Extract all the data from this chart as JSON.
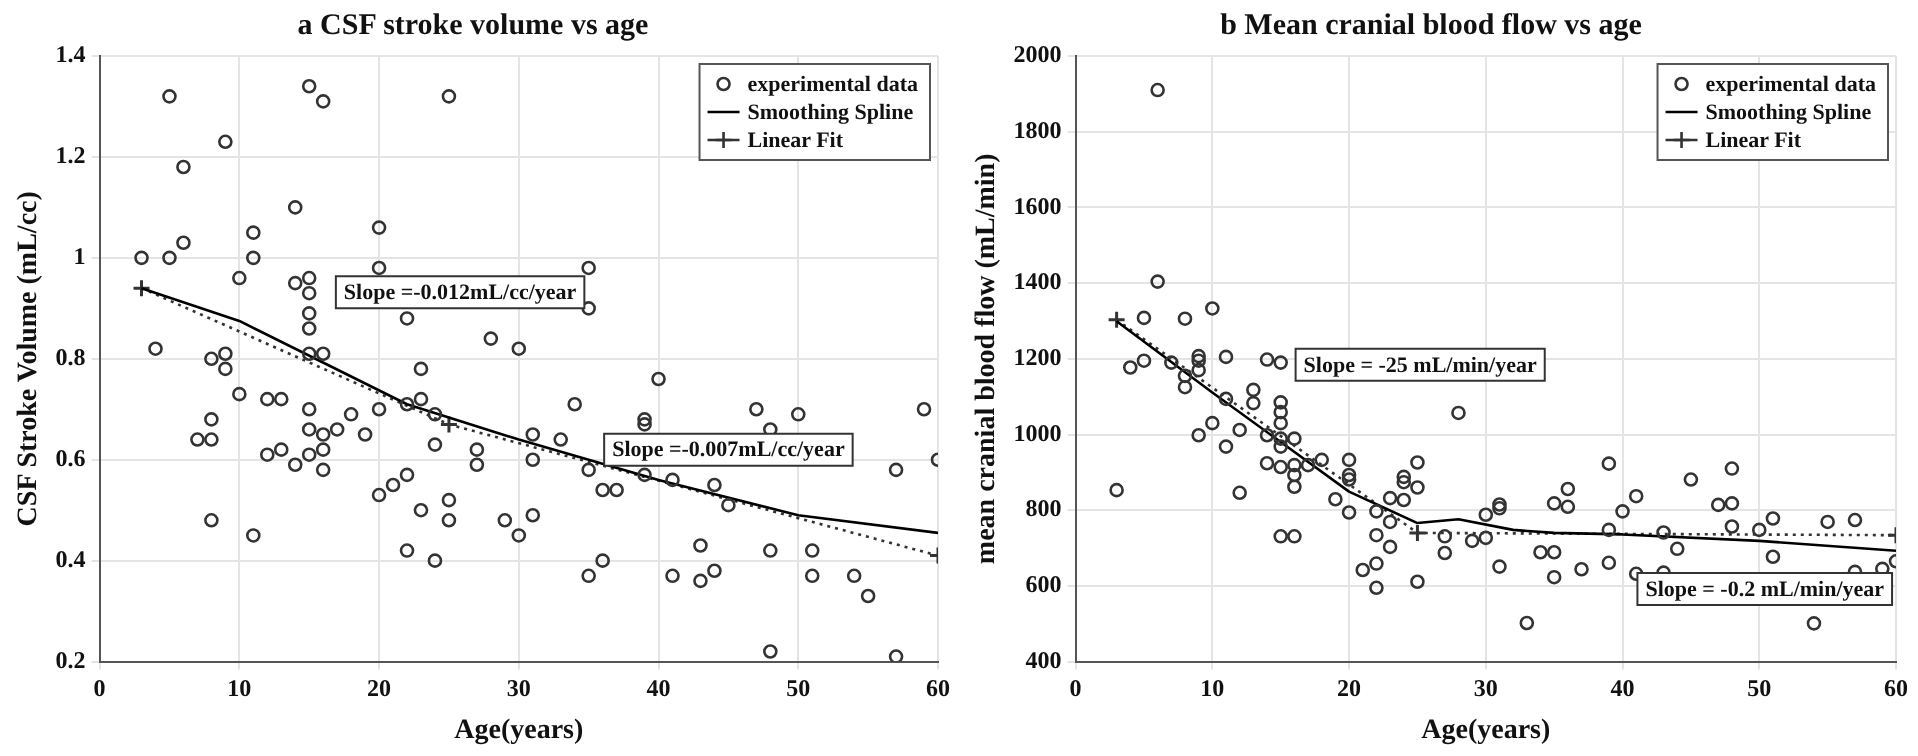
{
  "chart_data": [
    {
      "type": "scatter",
      "title": "a CSF stroke volume vs age",
      "xlabel": "Age(years)",
      "ylabel": "CSF Stroke Volume (mL/cc)",
      "xlim": [
        0,
        60
      ],
      "xticks": [
        0,
        10,
        20,
        30,
        40,
        50,
        60
      ],
      "ylim": [
        0.2,
        1.4
      ],
      "yticks": [
        0.2,
        0.4,
        0.6,
        0.8,
        1,
        1.2,
        1.4
      ],
      "grid": true,
      "legend": "top right",
      "annotations": [
        "Slope =-0.012mL/cc/year",
        "Slope =-0.007mL/cc/year"
      ],
      "series": [
        {
          "name": "experimental data",
          "type": "scatter",
          "marker": "circle",
          "color": "#333333",
          "x": [
            3,
            5,
            5,
            4,
            6,
            6,
            9,
            7,
            8,
            8,
            8,
            8,
            9,
            9,
            10,
            10,
            11,
            11,
            11,
            12,
            13,
            12,
            13,
            14,
            14,
            14,
            15,
            15,
            15,
            15,
            15,
            15,
            15,
            15,
            15,
            16,
            16,
            16,
            16,
            16,
            17,
            18,
            19,
            20,
            20,
            20,
            20,
            21,
            22,
            22,
            22,
            22,
            23,
            23,
            23,
            24,
            24,
            24,
            25,
            25,
            25,
            27,
            27,
            28,
            29,
            30,
            30,
            31,
            31,
            31,
            33,
            34,
            35,
            35,
            35,
            35,
            36,
            37,
            36,
            40,
            39,
            39,
            39,
            41,
            41,
            43,
            43,
            44,
            44,
            45,
            47,
            48,
            48,
            48,
            50,
            51,
            51,
            54,
            55,
            57,
            57,
            59,
            60
          ],
          "values": [
            1.0,
            1.32,
            1.0,
            0.82,
            1.18,
            1.03,
            1.23,
            0.64,
            0.64,
            0.8,
            0.68,
            0.48,
            0.81,
            0.78,
            0.96,
            0.73,
            1.05,
            1.0,
            0.45,
            0.72,
            0.72,
            0.61,
            0.62,
            1.1,
            0.95,
            0.59,
            1.34,
            0.96,
            0.93,
            0.89,
            0.86,
            0.81,
            0.7,
            0.66,
            0.61,
            1.31,
            0.81,
            0.65,
            0.62,
            0.58,
            0.66,
            0.69,
            0.65,
            1.06,
            0.98,
            0.7,
            0.53,
            0.55,
            0.88,
            0.71,
            0.57,
            0.42,
            0.78,
            0.72,
            0.5,
            0.69,
            0.63,
            0.4,
            1.32,
            0.52,
            0.48,
            0.62,
            0.59,
            0.84,
            0.48,
            0.82,
            0.45,
            0.65,
            0.6,
            0.49,
            0.64,
            0.71,
            0.98,
            0.9,
            0.58,
            0.37,
            0.54,
            0.54,
            0.4,
            0.76,
            0.68,
            0.67,
            0.57,
            0.56,
            0.37,
            0.43,
            0.36,
            0.55,
            0.38,
            0.51,
            0.7,
            0.66,
            0.42,
            0.22,
            0.69,
            0.42,
            0.37,
            0.37,
            0.33,
            0.58,
            0.21,
            0.7,
            0.6
          ]
        },
        {
          "name": "Smoothing Spline",
          "type": "line",
          "marker": "none",
          "color": "#000000",
          "x": [
            3,
            10,
            22,
            30,
            40,
            50,
            60
          ],
          "values": [
            0.94,
            0.875,
            0.71,
            0.64,
            0.56,
            0.49,
            0.455
          ]
        },
        {
          "name": "Linear Fit",
          "type": "line",
          "marker": "cross",
          "line_style": "dotted",
          "color": "#333333",
          "x": [
            3,
            25,
            60
          ],
          "values": [
            0.94,
            0.67,
            0.41
          ]
        }
      ]
    },
    {
      "type": "scatter",
      "title": "b Mean cranial blood flow vs age",
      "xlabel": "Age(years)",
      "ylabel": "mean cranial blood flow (mL/min)",
      "xlim": [
        0,
        60
      ],
      "xticks": [
        0,
        10,
        20,
        30,
        40,
        50,
        60
      ],
      "ylim": [
        400,
        2000
      ],
      "yticks": [
        400,
        600,
        800,
        1000,
        1200,
        1400,
        1600,
        1800,
        2000
      ],
      "grid": true,
      "legend": "top right",
      "annotations": [
        "Slope = -25 mL/min/year",
        "Slope = -0.2 mL/min/year"
      ],
      "series": [
        {
          "name": "experimental data",
          "type": "scatter",
          "marker": "circle",
          "color": "#333333",
          "x": [
            3,
            4,
            5,
            5,
            6,
            6,
            7,
            8,
            8,
            8,
            9,
            9,
            9,
            9,
            10,
            10,
            11,
            11,
            11,
            12,
            12,
            13,
            13,
            14,
            14,
            14,
            15,
            15,
            15,
            15,
            15,
            15,
            15,
            15,
            16,
            16,
            16,
            16,
            16,
            17,
            18,
            19,
            20,
            20,
            20,
            20,
            21,
            22,
            22,
            22,
            22,
            23,
            23,
            23,
            24,
            24,
            24,
            25,
            25,
            25,
            27,
            27,
            28,
            29,
            30,
            30,
            31,
            31,
            31,
            33,
            34,
            35,
            35,
            35,
            36,
            36,
            37,
            39,
            39,
            39,
            40,
            41,
            41,
            43,
            43,
            44,
            45,
            47,
            48,
            48,
            48,
            50,
            51,
            51,
            54,
            55,
            57,
            57,
            59,
            60
          ],
          "values": [
            853,
            1177,
            1308,
            1195,
            1910,
            1404,
            1190,
            1306,
            1155,
            1125,
            1207,
            1195,
            1170,
            998,
            1333,
            1030,
            1205,
            1094,
            968,
            1012,
            846,
            1118,
            1083,
            1198,
            998,
            924,
            1190,
            1085,
            1059,
            1030,
            989,
            968,
            914,
            731,
            989,
            919,
            893,
            862,
            731,
            919,
            933,
            829,
            933,
            893,
            881,
            794,
            642,
            797,
            734,
            659,
            595,
            832,
            769,
            703,
            888,
            874,
            827,
            926,
            860,
            611,
            731,
            687,
            1057,
            719,
            727,
            788,
            815,
            805,
            651,
            502,
            689,
            689,
            818,
            623,
            856,
            809,
            644,
            923,
            748,
            661,
            797,
            837,
            632,
            741,
            635,
            698,
            881,
            814,
            910,
            818,
            757,
            748,
            778,
            677,
            501,
            769,
            774,
            637,
            645,
            665
          ]
        },
        {
          "name": "Smoothing Spline",
          "type": "line",
          "marker": "none",
          "color": "#000000",
          "x": [
            3,
            10,
            15,
            20,
            25,
            28,
            32,
            35,
            40,
            50,
            60
          ],
          "values": [
            1299,
            1111,
            980,
            849,
            766,
            776,
            748,
            740,
            736,
            719,
            693
          ]
        },
        {
          "name": "Linear Fit",
          "type": "line",
          "marker": "cross",
          "line_style": "dotted",
          "color": "#333333",
          "x": [
            3,
            25,
            60
          ],
          "values": [
            1303,
            740,
            734
          ]
        }
      ]
    }
  ]
}
